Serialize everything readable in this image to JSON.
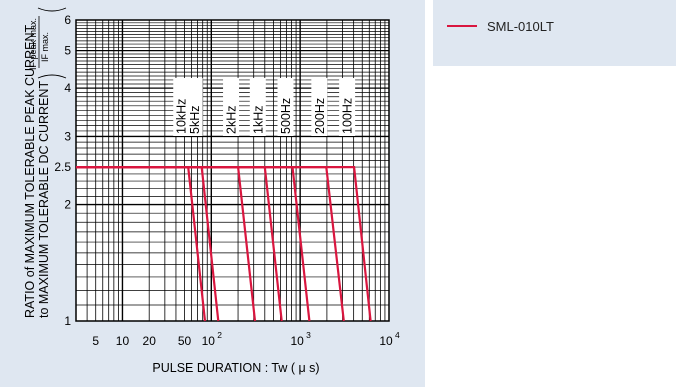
{
  "chart_data": {
    "type": "line",
    "title": "",
    "xlabel": "PULSE DURATION : Tw  ( μ s)",
    "ylabel_line1": "RATIO of MAXIMUM TOLERABLE PEAK CURRENT",
    "ylabel_line2": "to MAXIMUM TOLERABLE DC CURRENT",
    "ylabel_fraction_numerator": "IF peak max.",
    "ylabel_fraction_denominator": "IF max.",
    "x_scale": "log",
    "y_scale": "log",
    "xlim": [
      3,
      10000
    ],
    "ylim": [
      1,
      6
    ],
    "x_ticks": [
      {
        "value": 5,
        "label": "5"
      },
      {
        "value": 10,
        "label": "10"
      },
      {
        "value": 20,
        "label": "20"
      },
      {
        "value": 50,
        "label": "50"
      },
      {
        "value": 100,
        "label": "10",
        "exp": "2"
      },
      {
        "value": 1000,
        "label": "10",
        "exp": "3"
      },
      {
        "value": 10000,
        "label": "10",
        "exp": "4"
      }
    ],
    "y_ticks": [
      {
        "value": 1,
        "label": "1"
      },
      {
        "value": 2,
        "label": "2"
      },
      {
        "value": 2.5,
        "label": "2.5"
      },
      {
        "value": 3,
        "label": "3"
      },
      {
        "value": 4,
        "label": "4"
      },
      {
        "value": 5,
        "label": "5"
      },
      {
        "value": 6,
        "label": "6"
      }
    ],
    "grid": true,
    "legend_position": "right",
    "color": "#d9163f",
    "plateau": 2.5,
    "series": [
      {
        "name": "SML-010LT",
        "curves": [
          {
            "label": "10kHz",
            "x": [
              3,
              55,
              85
            ],
            "y": [
              2.5,
              2.5,
              1
            ]
          },
          {
            "label": "5kHz",
            "x": [
              3,
              78,
              120
            ],
            "y": [
              2.5,
              2.5,
              1
            ]
          },
          {
            "label": "2kHz",
            "x": [
              3,
              200,
              310
            ],
            "y": [
              2.5,
              2.5,
              1
            ]
          },
          {
            "label": "1kHz",
            "x": [
              3,
              400,
              620
            ],
            "y": [
              2.5,
              2.5,
              1
            ]
          },
          {
            "label": "500Hz",
            "x": [
              3,
              820,
              1270
            ],
            "y": [
              2.5,
              2.5,
              1
            ]
          },
          {
            "label": "200Hz",
            "x": [
              3,
              1970,
              3100
            ],
            "y": [
              2.5,
              2.5,
              1
            ]
          },
          {
            "label": "100Hz",
            "x": [
              3,
              4050,
              6200
            ],
            "y": [
              2.5,
              2.5,
              1
            ]
          }
        ]
      }
    ]
  }
}
